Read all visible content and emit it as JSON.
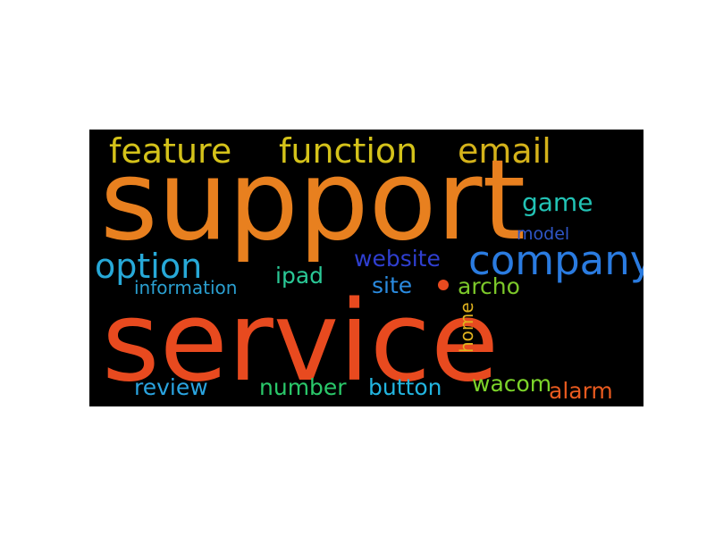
{
  "words": [
    {
      "key": "support",
      "text": "support",
      "color": "#e8801f"
    },
    {
      "key": "service",
      "text": "service",
      "color": "#e84a1f"
    },
    {
      "key": "company",
      "text": "company",
      "color": "#2a7be0"
    },
    {
      "key": "option",
      "text": "option",
      "color": "#27a9d8"
    },
    {
      "key": "feature",
      "text": "feature",
      "color": "#d4c21a"
    },
    {
      "key": "function",
      "text": "function",
      "color": "#d4c21a"
    },
    {
      "key": "email",
      "text": "email",
      "color": "#d4b21a"
    },
    {
      "key": "game",
      "text": "game",
      "color": "#22c3b5"
    },
    {
      "key": "model",
      "text": "model",
      "color": "#2f56c8"
    },
    {
      "key": "website",
      "text": "website",
      "color": "#2f3fd0"
    },
    {
      "key": "site",
      "text": "site",
      "color": "#2a8be0"
    },
    {
      "key": "archo",
      "text": "archo",
      "color": "#7cc82a"
    },
    {
      "key": "ipad",
      "text": "ipad",
      "color": "#2ac896"
    },
    {
      "key": "information",
      "text": "information",
      "color": "#2a9fd0"
    },
    {
      "key": "home",
      "text": "home",
      "color": "#e0b21f"
    },
    {
      "key": "review",
      "text": "review",
      "color": "#2aa4e0"
    },
    {
      "key": "number",
      "text": "number",
      "color": "#2ac86a"
    },
    {
      "key": "button",
      "text": "button",
      "color": "#22b5e0"
    },
    {
      "key": "wacom",
      "text": "wacom",
      "color": "#7cd42a"
    },
    {
      "key": "alarm",
      "text": "alarm",
      "color": "#e85a1f"
    }
  ],
  "dot_color": "#e84a1f"
}
